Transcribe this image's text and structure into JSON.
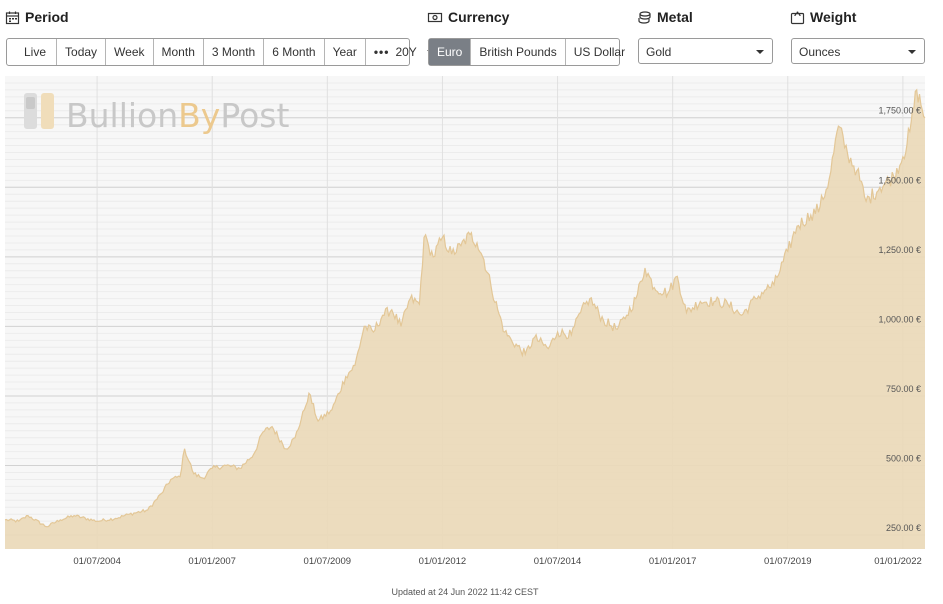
{
  "controls": {
    "period": {
      "title": "Period",
      "buttons": [
        "Live",
        "Today",
        "Week",
        "Month",
        "3 Month",
        "6 Month",
        "Year"
      ],
      "more_label": "20Y",
      "selected": "20Y"
    },
    "currency": {
      "title": "Currency",
      "options": [
        "Euro",
        "British Pounds",
        "US Dollar"
      ],
      "selected": "Euro"
    },
    "metal": {
      "title": "Metal",
      "selected": "Gold"
    },
    "weight": {
      "title": "Weight",
      "selected": "Ounces"
    }
  },
  "chart_data": {
    "type": "area",
    "x": [
      2002.5,
      2002.8,
      2003.0,
      2003.4,
      2003.7,
      2004.0,
      2004.5,
      2004.9,
      2005.2,
      2005.6,
      2005.9,
      2006.1,
      2006.3,
      2006.4,
      2006.6,
      2006.8,
      2007.0,
      2007.3,
      2007.6,
      2007.9,
      2008.1,
      2008.3,
      2008.6,
      2008.8,
      2009.0,
      2009.1,
      2009.3,
      2009.6,
      2009.9,
      2010.1,
      2010.3,
      2010.5,
      2010.7,
      2010.9,
      2011.1,
      2011.3,
      2011.5,
      2011.6,
      2011.7,
      2011.8,
      2012.0,
      2012.2,
      2012.4,
      2012.6,
      2012.75,
      2012.9,
      2013.05,
      2013.2,
      2013.35,
      2013.5,
      2013.8,
      2014.0,
      2014.3,
      2014.5,
      2014.8,
      2015.0,
      2015.2,
      2015.5,
      2015.8,
      2016.0,
      2016.2,
      2016.4,
      2016.6,
      2016.9,
      2017.1,
      2017.3,
      2017.6,
      2017.9,
      2018.2,
      2018.5,
      2018.8,
      2019.0,
      2019.2,
      2019.5,
      2019.7,
      2020.0,
      2020.2,
      2020.4,
      2020.6,
      2020.8,
      2021.0,
      2021.2,
      2021.5,
      2021.8,
      2022.0,
      2022.15,
      2022.3,
      2022.48
    ],
    "values": [
      305,
      300,
      320,
      280,
      305,
      320,
      300,
      310,
      325,
      340,
      400,
      450,
      460,
      560,
      470,
      455,
      490,
      500,
      490,
      540,
      620,
      640,
      560,
      600,
      700,
      760,
      660,
      700,
      820,
      860,
      1000,
      980,
      1040,
      1060,
      1000,
      1100,
      1080,
      1320,
      1290,
      1250,
      1320,
      1260,
      1290,
      1330,
      1300,
      1240,
      1150,
      1060,
      980,
      950,
      900,
      960,
      920,
      980,
      970,
      1050,
      1100,
      1020,
      990,
      1040,
      1100,
      1210,
      1140,
      1120,
      1180,
      1050,
      1090,
      1090,
      1080,
      1040,
      1100,
      1130,
      1150,
      1270,
      1360,
      1400,
      1430,
      1530,
      1720,
      1620,
      1560,
      1450,
      1500,
      1540,
      1610,
      1700,
      1850,
      1750
    ],
    "ylim": [
      200,
      1900
    ],
    "yticks": [
      250,
      500,
      750,
      1000,
      1250,
      1500,
      1750
    ],
    "ytick_labels": [
      "250.00 €",
      "500.00 €",
      "750.00 €",
      "1,000.00 €",
      "1,250.00 €",
      "1,500.00 €",
      "1,750.00 €"
    ],
    "xticks": [
      2004.5,
      2007.0,
      2009.5,
      2012.0,
      2014.5,
      2017.0,
      2019.5,
      2022.0
    ],
    "xtick_labels": [
      "01/07/2004",
      "01/01/2007",
      "01/07/2009",
      "01/01/2012",
      "01/07/2014",
      "01/01/2017",
      "01/07/2019",
      "01/01/2022"
    ],
    "xlim": [
      2002.5,
      2022.48
    ],
    "grid": true,
    "area_color": "#ead9b9",
    "line_color": "#e3c797",
    "watermark_colors": {
      "bullion": "#c8c8c8",
      "by": "#ecc98e",
      "post": "#c8c8c8"
    }
  },
  "watermark": {
    "bullion": "Bullion",
    "by": "By",
    "post": "Post"
  },
  "updated_text": "Updated at 24 Jun 2022 11:42 CEST"
}
